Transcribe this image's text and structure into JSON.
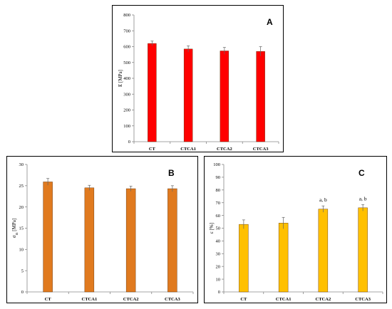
{
  "chart_data": [
    {
      "type": "bar",
      "panel": "A",
      "ylabel": "E [MPa]",
      "categories": [
        "CT",
        "CTCA1",
        "CTCA2",
        "CTCA3"
      ],
      "values": [
        620,
        585,
        573,
        570
      ],
      "errors": [
        15,
        20,
        22,
        30
      ],
      "annotations": [
        "",
        "",
        "",
        ""
      ],
      "ylim": [
        0,
        800
      ],
      "yticks": [
        0,
        100,
        200,
        300,
        400,
        500,
        600,
        700,
        800
      ],
      "bar_color": "#ff0000",
      "grid": false
    },
    {
      "type": "bar",
      "panel": "B",
      "ylabel": "σm [MPa]",
      "ylabel_main": "σ",
      "ylabel_sub": "m",
      "ylabel_unit": " [MPa]",
      "categories": [
        "CT",
        "CTCA1",
        "CTCA2",
        "CTCA3"
      ],
      "values": [
        25.9,
        24.5,
        24.3,
        24.3
      ],
      "errors": [
        0.8,
        0.6,
        0.6,
        0.7
      ],
      "annotations": [
        "",
        "",
        "",
        ""
      ],
      "ylim": [
        0,
        30
      ],
      "yticks": [
        0,
        5,
        10,
        15,
        20,
        25,
        30
      ],
      "bar_color": "#e07a1f",
      "grid": false
    },
    {
      "type": "bar",
      "panel": "C",
      "ylabel": "ε [%]",
      "categories": [
        "CT",
        "CTCA1",
        "CTCA2",
        "CTCA3"
      ],
      "values": [
        53,
        54,
        65,
        66
      ],
      "errors": [
        3.5,
        4.5,
        2.5,
        2.5
      ],
      "annotations": [
        "",
        "",
        "a, b",
        "a, b"
      ],
      "ylim": [
        0,
        100
      ],
      "yticks": [
        0,
        10,
        20,
        30,
        40,
        50,
        60,
        70,
        80,
        90,
        100
      ],
      "bar_color": "#ffc000",
      "grid": false
    }
  ]
}
